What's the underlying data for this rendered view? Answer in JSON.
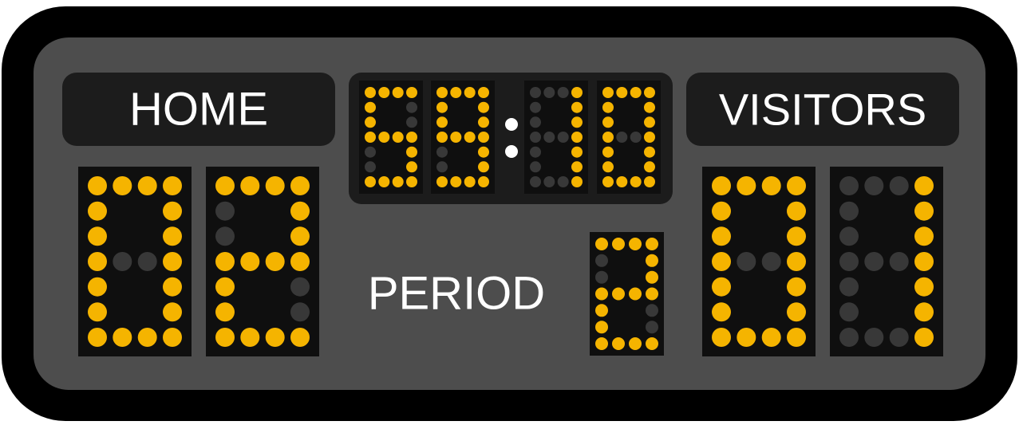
{
  "labels": {
    "home": "HOME",
    "visitors": "VISITORS",
    "period": "PERIOD"
  },
  "clock": {
    "minutes": "59",
    "seconds": "10"
  },
  "scores": {
    "home": "02",
    "visitors": "01"
  },
  "period": "2",
  "colors": {
    "frame": "#000000",
    "panel": "#4d4d4d",
    "plate": "#1c1c1c",
    "digit_bg": "#0f0f0f",
    "lit": "#f5b400",
    "unlit": "#383838",
    "text": "#ffffff"
  }
}
